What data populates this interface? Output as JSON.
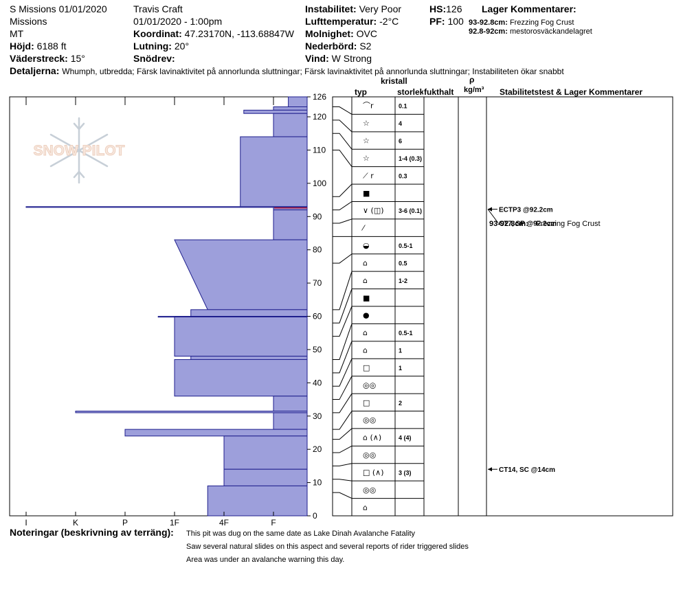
{
  "header": {
    "pit_title": "S Missions 01/01/2020",
    "range": "Missions",
    "state": "MT",
    "elevation_label": "Höjd:",
    "elevation_value": "6188 ft",
    "aspect_label": "Väderstreck:",
    "aspect_value": "15°",
    "observer": "Travis  Craft",
    "datetime": "01/01/2020 - 1:00pm",
    "coord_label": "Koordinat:",
    "coord_value": "47.23170N, -113.68847W",
    "slope_label": "Lutning:",
    "slope_value": "20°",
    "wind_loading_label": "Snödrev:",
    "wind_loading_value": "",
    "stability_label": "Instabilitet:",
    "stability_value": "Very Poor",
    "air_temp_label": "Lufttemperatur:",
    "air_temp_value": "-2°C",
    "sky_label": "Molnighet:",
    "sky_value": "OVC",
    "precip_label": "Nederbörd:",
    "precip_value": "S2",
    "wind_label": "Vind:",
    "wind_value": "W Strong",
    "hs_label": "HS:",
    "hs_value": "126",
    "pf_label": "PF:",
    "pf_value": "100",
    "layer_comments_label": "Lager Kommentarer:",
    "layer_comments": [
      {
        "range": "93-92.8cm:",
        "text": "Frezzing Fog Crust"
      },
      {
        "range": "92.8-92cm:",
        "text": "mestorosväckandelagret"
      }
    ],
    "details_label": "Detaljerna:",
    "details_value": "Whumph, utbredda;  Färsk lavinaktivitet på annorlunda sluttningar;  Färsk lavinaktivitet på annorlunda sluttningar;  Instabiliteten ökar snabbt"
  },
  "watermark": "SNOW PILOT",
  "table_headers": {
    "crystal": "kristall",
    "type": "typ",
    "size": "storlek",
    "moisture": "fukthalt",
    "rho": "ρ",
    "density_unit": "kg/m³",
    "stability": "Stabilitetstest & Lager Kommentarer"
  },
  "notes": {
    "label": "Noteringar (beskrivning av terräng):",
    "lines": [
      "This pit was dug on the same date as Lake Dinah Avalanche Fatality",
      "Saw several natural slides on this aspect and several reports of rider triggered slides",
      "Area was under an avalanche warning this day."
    ]
  },
  "chart_data": {
    "type": "snow-profile",
    "hs": 126,
    "y_ticks": [
      0,
      10,
      20,
      30,
      40,
      50,
      60,
      70,
      80,
      90,
      100,
      110,
      120,
      126
    ],
    "ylim": [
      0,
      126
    ],
    "hardness_ticks": [
      "I",
      "K",
      "P",
      "1F",
      "4F",
      "F"
    ],
    "hardness_scale": {
      "I": 1,
      "K": 2,
      "P": 3,
      "1F": 4,
      "4F": 5,
      "F": 6
    },
    "hardness_profile": [
      {
        "top": 126,
        "bottom": 123,
        "hardness": 6.3
      },
      {
        "top": 123,
        "bottom": 122,
        "hardness": 6.0
      },
      {
        "top": 122,
        "bottom": 121,
        "hardness": 5.4
      },
      {
        "top": 121,
        "bottom": 114,
        "hardness": 6.0
      },
      {
        "top": 114,
        "bottom": 92.8,
        "hardness": 5.33
      },
      {
        "top": 93,
        "bottom": 92.8,
        "hardness": 1.0
      },
      {
        "top": 92.8,
        "bottom": 92,
        "hardness": 6.0
      },
      {
        "top": 92,
        "bottom": 83,
        "hardness": 6.0
      },
      {
        "top": 83,
        "bottom": 62,
        "hardness_top": 4.0,
        "hardness_bottom": 4.67
      },
      {
        "top": 62,
        "bottom": 60,
        "hardness": 4.33
      },
      {
        "top": 60,
        "bottom": 59.8,
        "hardness": 3.67
      },
      {
        "top": 59.8,
        "bottom": 48,
        "hardness": 4.0
      },
      {
        "top": 48,
        "bottom": 47,
        "hardness": 4.33
      },
      {
        "top": 47,
        "bottom": 36,
        "hardness": 4.0
      },
      {
        "top": 36,
        "bottom": 31.5,
        "hardness": 6.0
      },
      {
        "top": 31.5,
        "bottom": 31,
        "hardness": 2.0
      },
      {
        "top": 31,
        "bottom": 26,
        "hardness": 6.0
      },
      {
        "top": 26,
        "bottom": 24,
        "hardness": 3.0
      },
      {
        "top": 24,
        "bottom": 14,
        "hardness": 5.0
      },
      {
        "top": 14,
        "bottom": 9,
        "hardness": 5.0
      },
      {
        "top": 9,
        "bottom": 0,
        "hardness": 4.67
      }
    ],
    "layers": [
      {
        "top": 126,
        "bottom": 123,
        "grain": "⌒r",
        "size": "0.1"
      },
      {
        "top": 123,
        "bottom": 119,
        "grain": "☆",
        "size": "4"
      },
      {
        "top": 119,
        "bottom": 115,
        "grain": "☆",
        "size": "6"
      },
      {
        "top": 115,
        "bottom": 110,
        "grain": "☆",
        "size": "1-4 (0.3)"
      },
      {
        "top": 110,
        "bottom": 96,
        "grain": "⟋ r",
        "size": "0.3"
      },
      {
        "top": 96,
        "bottom": 92,
        "grain": "■",
        "size": ""
      },
      {
        "top": 92,
        "bottom": 88,
        "grain": "∨ (◫)",
        "size": "3-6 (0.1)"
      },
      {
        "top": 88,
        "bottom": 84,
        "grain": "⁄",
        "size": ""
      },
      {
        "top": 84,
        "bottom": 76,
        "grain": "◒",
        "size": "0.5-1"
      },
      {
        "top": 76,
        "bottom": 62,
        "grain": "⌂",
        "size": "0.5"
      },
      {
        "top": 62,
        "bottom": 58,
        "grain": "⌂",
        "size": "1-2"
      },
      {
        "top": 58,
        "bottom": 54,
        "grain": "■",
        "size": ""
      },
      {
        "top": 54,
        "bottom": 47,
        "grain": "●",
        "size": ""
      },
      {
        "top": 47,
        "bottom": 43,
        "grain": "⌂",
        "size": "0.5-1"
      },
      {
        "top": 43,
        "bottom": 39,
        "grain": "⌂",
        "size": "1"
      },
      {
        "top": 39,
        "bottom": 35,
        "grain": "□",
        "size": "1"
      },
      {
        "top": 35,
        "bottom": 31,
        "grain": "◎◎",
        "size": ""
      },
      {
        "top": 31,
        "bottom": 26,
        "grain": "□",
        "size": "2"
      },
      {
        "top": 26,
        "bottom": 23,
        "grain": "◎◎",
        "size": ""
      },
      {
        "top": 23,
        "bottom": 19,
        "grain": "⌂ (∧)",
        "size": "4 (4)"
      },
      {
        "top": 19,
        "bottom": 15,
        "grain": "◎◎",
        "size": ""
      },
      {
        "top": 15,
        "bottom": 11,
        "grain": "□ (∧)",
        "size": "3 (3)"
      },
      {
        "top": 11,
        "bottom": 7,
        "grain": "◎◎",
        "size": ""
      },
      {
        "top": 7,
        "bottom": 0,
        "grain": "⌂",
        "size": ""
      }
    ],
    "stability_tests": [
      {
        "depth": 92.2,
        "label": "ECTP3 @92.2cm"
      },
      {
        "depth": 92.2,
        "label": "CT7, SP @92.2cm"
      },
      {
        "depth": 14,
        "label": "CT14, SC @14cm"
      }
    ],
    "layer_comment_in_table": {
      "depth": 88,
      "range": "93-92.8cm:",
      "text": "Frezzing Fog Crust"
    }
  }
}
